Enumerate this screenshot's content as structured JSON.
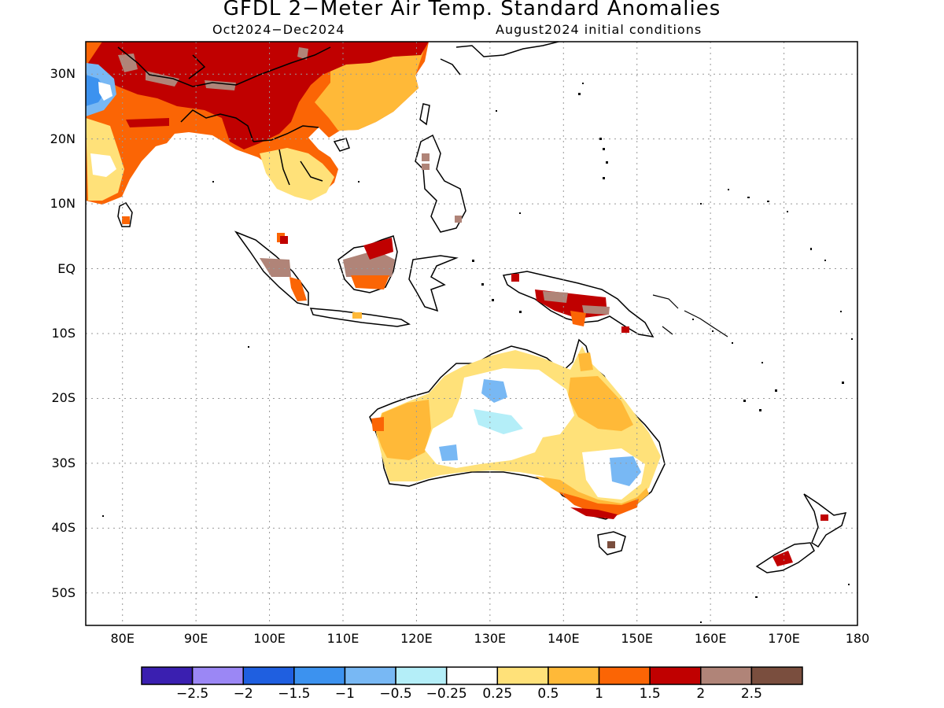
{
  "header": {
    "title": "GFDL 2−Meter Air Temp. Standard Anomalies",
    "period": "Oct2024−Dec2024",
    "init": "August2024 initial conditions"
  },
  "axes": {
    "lon_labels": [
      "80E",
      "90E",
      "100E",
      "110E",
      "120E",
      "130E",
      "140E",
      "150E",
      "160E",
      "170E",
      "180"
    ],
    "lat_labels": [
      "30N",
      "20N",
      "10N",
      "EQ",
      "10S",
      "20S",
      "30S",
      "40S",
      "50S"
    ],
    "lon_range": [
      75,
      180
    ],
    "lat_range": [
      -55,
      35
    ],
    "grid": "dotted"
  },
  "colorbar": {
    "colors": [
      "#3a1fb0",
      "#9b87f5",
      "#1f5fe0",
      "#3c92ef",
      "#78b8f4",
      "#b4eef8",
      "#ffffff",
      "#ffe179",
      "#ffb938",
      "#fb6505",
      "#c00000",
      "#b08478",
      "#7a4e3e"
    ],
    "labels": [
      "−2.5",
      "−2",
      "−1.5",
      "−1",
      "−0.5",
      "−0.25",
      "0.25",
      "0.5",
      "1",
      "1.5",
      "2",
      "2.5"
    ]
  }
}
